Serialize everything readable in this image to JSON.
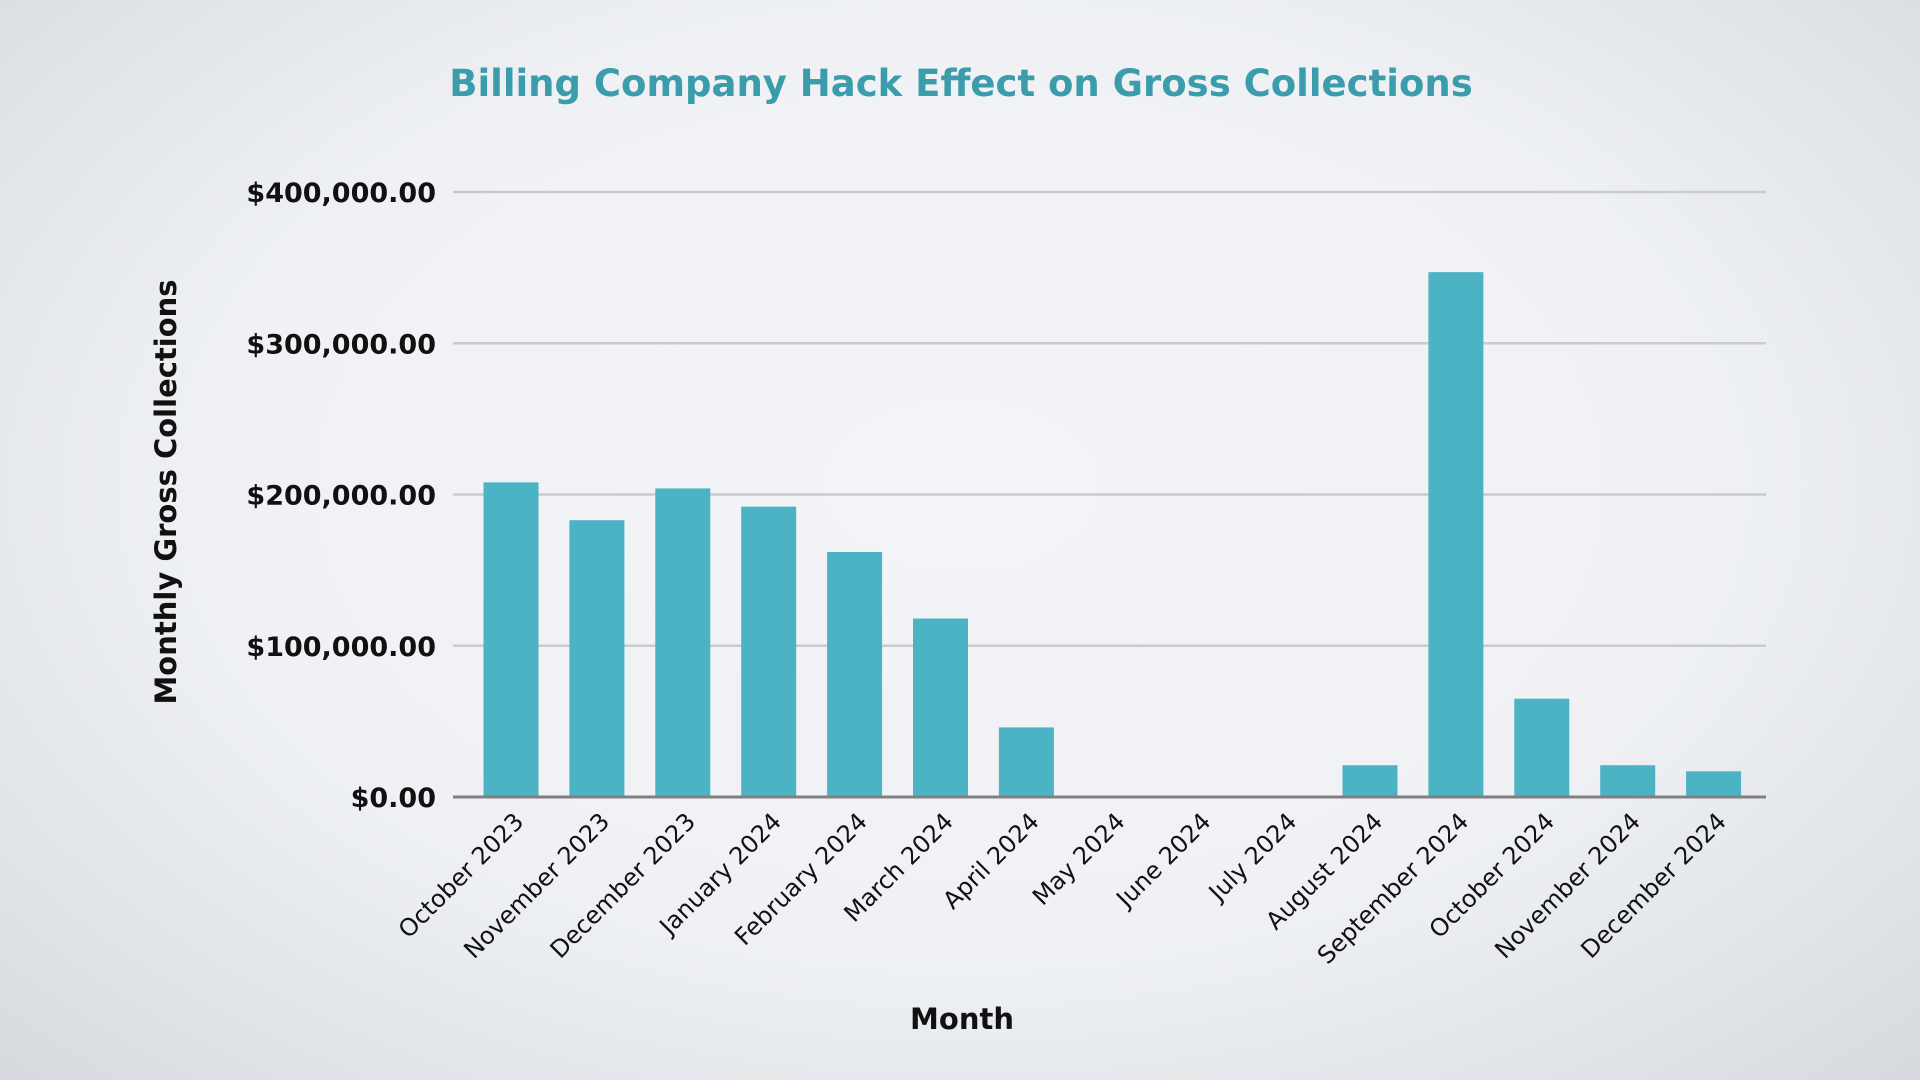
{
  "chart_data": {
    "type": "bar",
    "title": "Billing Company Hack Effect on Gross Collections",
    "xlabel": "Month",
    "ylabel": "Monthly Gross Collections",
    "ylim": [
      0,
      400000
    ],
    "yticks": [
      0,
      100000,
      200000,
      300000,
      400000
    ],
    "ytick_labels": [
      "$0.00",
      "$100,000.00",
      "$200,000.00",
      "$300,000.00",
      "$400,000.00"
    ],
    "grid": true,
    "categories": [
      "October 2023",
      "November 2023",
      "December 2023",
      "January 2024",
      "February 2024",
      "March 2024",
      "April 2024",
      "May 2024",
      "June 2024",
      "July 2024",
      "August 2024",
      "September 2024",
      "October 2024",
      "November 2024",
      "December 2024"
    ],
    "values": [
      208000,
      183000,
      204000,
      192000,
      162000,
      118000,
      46000,
      0,
      0,
      0,
      21000,
      347000,
      65000,
      21000,
      17000
    ],
    "colors": {
      "bar": "#4bb3c4",
      "title": "#3b9cab",
      "grid": "#c9cbcd",
      "axis": "#808080"
    }
  }
}
